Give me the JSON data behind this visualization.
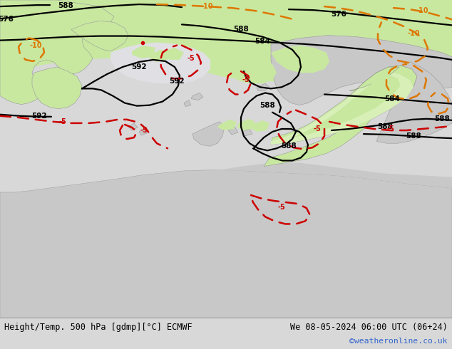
{
  "title_left": "Height/Temp. 500 hPa [gdmp][°C] ECMWF",
  "title_right": "We 08-05-2024 06:00 UTC (06+24)",
  "watermark": "©weatheronline.co.uk",
  "sea_color": "#e0e0e4",
  "land_gray": "#c8c8c8",
  "green_color": "#c8e8a0",
  "green_light": "#d8f0b8",
  "black": "#000000",
  "red": "#cc0000",
  "orange": "#dd7700",
  "footer_bg": "#d8d8d8",
  "footer_text": "#000000",
  "watermark_color": "#3366cc"
}
